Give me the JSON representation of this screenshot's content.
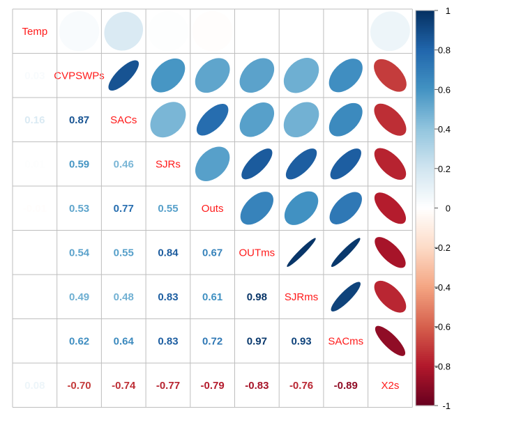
{
  "chart_data": {
    "type": "heatmap",
    "style": "correlation-matrix-mixed",
    "upper": "ellipse",
    "lower": "number",
    "variables": [
      "Temp",
      "CVPSWPs",
      "SACs",
      "SJRs",
      "Outs",
      "OUTms",
      "SJRms",
      "SACms",
      "X2s"
    ],
    "diagonal_labels": [
      "Temp",
      "CVPSWPs",
      "SACs",
      "SJRs",
      "Outs",
      "OUTms",
      "SJRms",
      "SACms",
      "X2s"
    ],
    "matrix": [
      [
        1,
        0.03,
        0.16,
        0.01,
        -0.01,
        0.0,
        0.0,
        0.0,
        0.08
      ],
      [
        0.03,
        1,
        0.87,
        0.59,
        0.53,
        0.54,
        0.49,
        0.62,
        -0.7
      ],
      [
        0.16,
        0.87,
        1,
        0.46,
        0.77,
        0.55,
        0.48,
        0.64,
        -0.74
      ],
      [
        0.01,
        0.59,
        0.46,
        1,
        0.55,
        0.84,
        0.83,
        0.83,
        -0.77
      ],
      [
        -0.01,
        0.53,
        0.77,
        0.55,
        1,
        0.67,
        0.61,
        0.72,
        -0.79
      ],
      [
        0.0,
        0.54,
        0.55,
        0.84,
        0.67,
        1,
        0.98,
        0.97,
        -0.83
      ],
      [
        0.0,
        0.49,
        0.48,
        0.83,
        0.61,
        0.98,
        1,
        0.93,
        -0.76
      ],
      [
        0.0,
        0.62,
        0.64,
        0.83,
        0.72,
        0.97,
        0.93,
        1,
        -0.89
      ],
      [
        0.08,
        -0.7,
        -0.74,
        -0.77,
        -0.79,
        -0.83,
        -0.76,
        -0.89,
        1
      ]
    ],
    "lower_text": [
      [
        "",
        "",
        "",
        "",
        "",
        "",
        "",
        "",
        ""
      ],
      [
        "0.03",
        "",
        "",
        "",
        "",
        "",
        "",
        "",
        ""
      ],
      [
        "0.16",
        "0.87",
        "",
        "",
        "",
        "",
        "",
        "",
        ""
      ],
      [
        "0.01",
        "0.59",
        "0.46",
        "",
        "",
        "",
        "",
        "",
        ""
      ],
      [
        "-0.01",
        "0.53",
        "0.77",
        "0.55",
        "",
        "",
        "",
        "",
        ""
      ],
      [
        "",
        "0.54",
        "0.55",
        "0.84",
        "0.67",
        "",
        "",
        "",
        ""
      ],
      [
        "",
        "0.49",
        "0.48",
        "0.83",
        "0.61",
        "0.98",
        "",
        "",
        ""
      ],
      [
        "",
        "0.62",
        "0.64",
        "0.83",
        "0.72",
        "0.97",
        "0.93",
        "",
        ""
      ],
      [
        "0.08",
        "-0.70",
        "-0.74",
        "-0.77",
        "-0.79",
        "-0.83",
        "-0.76",
        "-0.89",
        ""
      ]
    ],
    "colorbar": {
      "range": [
        -1,
        1
      ],
      "ticks": [
        1,
        0.8,
        0.6,
        0.4,
        0.2,
        0,
        -0.2,
        -0.4,
        -0.6,
        -0.8,
        -1
      ],
      "tick_labels": [
        "1",
        "0.8",
        "0.6",
        "0.4",
        "0.2",
        "0",
        "-0.2",
        "-0.4",
        "-0.6",
        "-0.8",
        "-1"
      ]
    },
    "palette": [
      "#67001f",
      "#b2182b",
      "#d6604d",
      "#f4a582",
      "#fddbc7",
      "#ffffff",
      "#d1e5f0",
      "#92c5de",
      "#4393c3",
      "#2166ac",
      "#053061"
    ],
    "grid_color": "#bebebe",
    "label_color": "#ff1a1a",
    "legend": "right"
  }
}
